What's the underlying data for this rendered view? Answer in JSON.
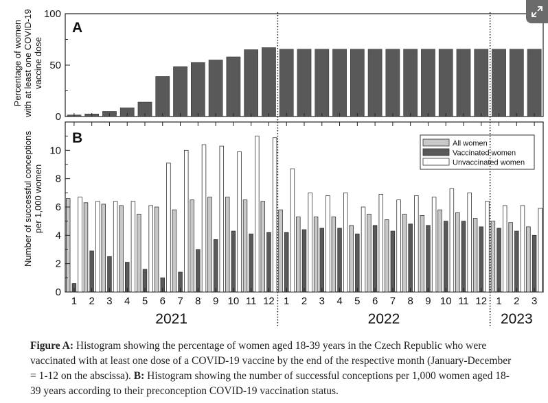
{
  "chart_data": [
    {
      "type": "bar",
      "panel_label": "A",
      "ylabel_lines": [
        "Percentage of women",
        "with at least one COVID-19",
        "vaccine dose"
      ],
      "ylim": [
        0,
        100
      ],
      "yticks": [
        "0",
        "50",
        "100"
      ],
      "categories": [
        "2021-01",
        "2021-02",
        "2021-03",
        "2021-04",
        "2021-05",
        "2021-06",
        "2021-07",
        "2021-08",
        "2021-09",
        "2021-10",
        "2021-11",
        "2021-12",
        "2022-01",
        "2022-02",
        "2022-03",
        "2022-04",
        "2022-05",
        "2022-06",
        "2022-07",
        "2022-08",
        "2022-09",
        "2022-10",
        "2022-11",
        "2022-12",
        "2023-01",
        "2023-02",
        "2023-03"
      ],
      "values": [
        1.5,
        2.5,
        5,
        8.5,
        14,
        39,
        48.5,
        52.5,
        55,
        58,
        65,
        67,
        65.5,
        65.5,
        65.5,
        65.5,
        65.5,
        65.5,
        65.5,
        65.5,
        65.5,
        65.5,
        65.5,
        65.5,
        65.5,
        65.5,
        65.5
      ],
      "colors": {
        "bar": "#595959"
      }
    },
    {
      "type": "bar",
      "panel_label": "B",
      "ylabel_lines": [
        "Number of successful conceptions",
        "per 1,000 women"
      ],
      "ylim": [
        0,
        12
      ],
      "yticks": [
        "0",
        "2",
        "4",
        "6",
        "8",
        "10"
      ],
      "month_labels": [
        "1",
        "2",
        "3",
        "4",
        "5",
        "6",
        "7",
        "8",
        "9",
        "10",
        "11",
        "12",
        "1",
        "2",
        "3",
        "4",
        "5",
        "6",
        "7",
        "8",
        "9",
        "10",
        "11",
        "12",
        "1",
        "2",
        "3"
      ],
      "year_labels": [
        "2021",
        "2022",
        "2023"
      ],
      "legend_position": "top-right",
      "series": [
        {
          "name": "All women",
          "color": "#c8c8c8",
          "values": [
            6.6,
            6.3,
            6.2,
            6.1,
            5.5,
            6.0,
            5.8,
            6.5,
            6.7,
            6.7,
            6.5,
            6.4,
            5.8,
            5.3,
            5.3,
            5.3,
            4.7,
            5.5,
            5.1,
            5.5,
            5.4,
            5.8,
            5.6,
            5.2,
            5.0,
            4.9,
            4.6
          ]
        },
        {
          "name": "Vaccinated women",
          "color": "#595959",
          "values": [
            0.6,
            2.9,
            2.5,
            2.1,
            1.6,
            1.0,
            1.4,
            3.0,
            3.7,
            4.3,
            4.1,
            4.2,
            4.2,
            4.4,
            4.5,
            4.5,
            4.1,
            4.7,
            4.3,
            4.8,
            4.7,
            5.0,
            5.0,
            4.6,
            4.5,
            4.3,
            4.0
          ]
        },
        {
          "name": "Unvaccinated women",
          "color": "#ffffff",
          "values": [
            6.7,
            6.4,
            6.4,
            6.4,
            6.1,
            9.1,
            10.0,
            10.4,
            10.3,
            9.9,
            11.0,
            10.9,
            8.7,
            7.0,
            6.8,
            7.0,
            6.0,
            6.9,
            6.5,
            6.8,
            6.7,
            7.3,
            7.0,
            6.4,
            6.1,
            6.1,
            5.9
          ]
        }
      ]
    }
  ],
  "caption": {
    "title_a": "Figure A:",
    "text_a": " Histogram showing the percentage of women aged 18-39 years in the Czech Republic who were vaccinated with at least one dose of a COVID-19 vaccine by the end of the respective month (January-December = 1-12 on the abscissa). ",
    "title_b": "B:",
    "text_b": " Histogram showing the number of successful conceptions per 1,000 women aged 18-39 years according to their preconception COVID-19 vaccination status."
  },
  "ui": {
    "expand_icon": "expand-icon"
  }
}
